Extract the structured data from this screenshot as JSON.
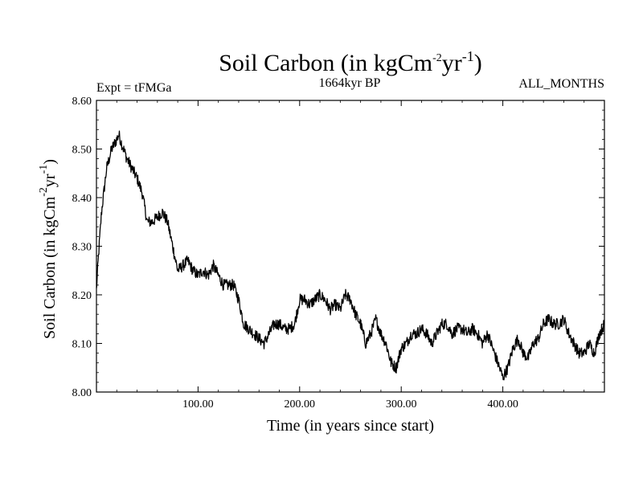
{
  "chart_data": {
    "type": "line",
    "title": "Soil Carbon (in kgCm",
    "title_sup1": "-2",
    "title_mid": "yr",
    "title_sup2": "-1",
    "title_end": ")",
    "experiment_label": "Expt = tFMGa",
    "period_label": "1664kyr BP",
    "months_label": "ALL_MONTHS",
    "xlabel": "Time (in years since start)",
    "ylabel_main": "Soil Carbon (in kgCm",
    "ylabel_sup1": "-2",
    "ylabel_mid": "yr",
    "ylabel_sup2": "-1",
    "ylabel_end": ")",
    "xlim": [
      0,
      500
    ],
    "ylim": [
      8.0,
      8.6
    ],
    "x_ticks": [
      100,
      200,
      300,
      400
    ],
    "x_tick_labels": [
      "100.00",
      "200.00",
      "300.00",
      "400.00"
    ],
    "y_ticks": [
      8.0,
      8.1,
      8.2,
      8.3,
      8.4,
      8.5,
      8.6
    ],
    "y_tick_labels": [
      "8.00",
      "8.10",
      "8.20",
      "8.30",
      "8.40",
      "8.50",
      "8.60"
    ],
    "noise_amplitude": 0.012,
    "series": [
      {
        "name": "Soil Carbon",
        "color": "#000000",
        "x": [
          0,
          2,
          5,
          10,
          15,
          20,
          22,
          25,
          30,
          35,
          40,
          45,
          50,
          55,
          60,
          65,
          70,
          75,
          80,
          85,
          90,
          95,
          100,
          105,
          110,
          115,
          120,
          125,
          130,
          135,
          140,
          145,
          150,
          155,
          160,
          165,
          170,
          175,
          180,
          185,
          190,
          195,
          200,
          205,
          210,
          215,
          220,
          225,
          230,
          235,
          240,
          245,
          250,
          255,
          260,
          265,
          270,
          275,
          280,
          285,
          290,
          295,
          300,
          305,
          310,
          315,
          320,
          325,
          330,
          335,
          340,
          345,
          350,
          355,
          360,
          365,
          370,
          375,
          380,
          385,
          390,
          395,
          400,
          405,
          410,
          415,
          420,
          425,
          430,
          435,
          440,
          445,
          450,
          455,
          460,
          465,
          470,
          475,
          480,
          485,
          490,
          495,
          500
        ],
        "y": [
          8.21,
          8.28,
          8.37,
          8.46,
          8.5,
          8.52,
          8.53,
          8.51,
          8.48,
          8.46,
          8.44,
          8.41,
          8.35,
          8.35,
          8.36,
          8.37,
          8.35,
          8.3,
          8.25,
          8.26,
          8.27,
          8.25,
          8.24,
          8.25,
          8.24,
          8.26,
          8.24,
          8.22,
          8.22,
          8.22,
          8.19,
          8.14,
          8.13,
          8.12,
          8.11,
          8.1,
          8.12,
          8.14,
          8.14,
          8.13,
          8.13,
          8.14,
          8.19,
          8.19,
          8.18,
          8.19,
          8.2,
          8.19,
          8.17,
          8.18,
          8.17,
          8.2,
          8.19,
          8.16,
          8.14,
          8.1,
          8.12,
          8.15,
          8.12,
          8.1,
          8.06,
          8.05,
          8.09,
          8.1,
          8.12,
          8.12,
          8.13,
          8.12,
          8.1,
          8.12,
          8.14,
          8.14,
          8.12,
          8.13,
          8.13,
          8.12,
          8.13,
          8.12,
          8.1,
          8.12,
          8.09,
          8.06,
          8.03,
          8.05,
          8.09,
          8.11,
          8.08,
          8.07,
          8.1,
          8.11,
          8.14,
          8.15,
          8.14,
          8.14,
          8.15,
          8.12,
          8.1,
          8.08,
          8.08,
          8.1,
          8.08,
          8.12,
          8.14
        ]
      }
    ]
  }
}
